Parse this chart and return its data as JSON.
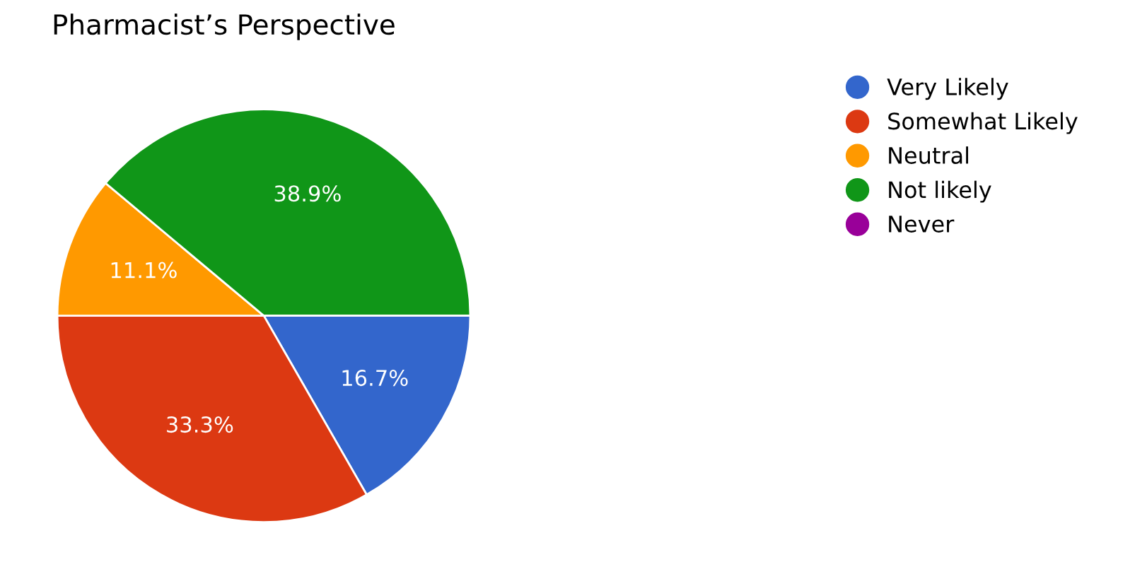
{
  "chart_data": {
    "type": "pie",
    "title": "Pharmacist’s Perspective",
    "categories": [
      "Very Likely",
      "Somewhat Likely",
      "Neutral",
      "Not likely",
      "Never"
    ],
    "values": [
      16.7,
      33.3,
      11.1,
      38.9,
      0
    ],
    "colors": [
      "#3366cc",
      "#dc3912",
      "#ff9900",
      "#109618",
      "#990099"
    ],
    "value_labels": [
      "16.7%",
      "33.3%",
      "11.1%",
      "38.9%",
      null
    ],
    "legend": "right"
  }
}
